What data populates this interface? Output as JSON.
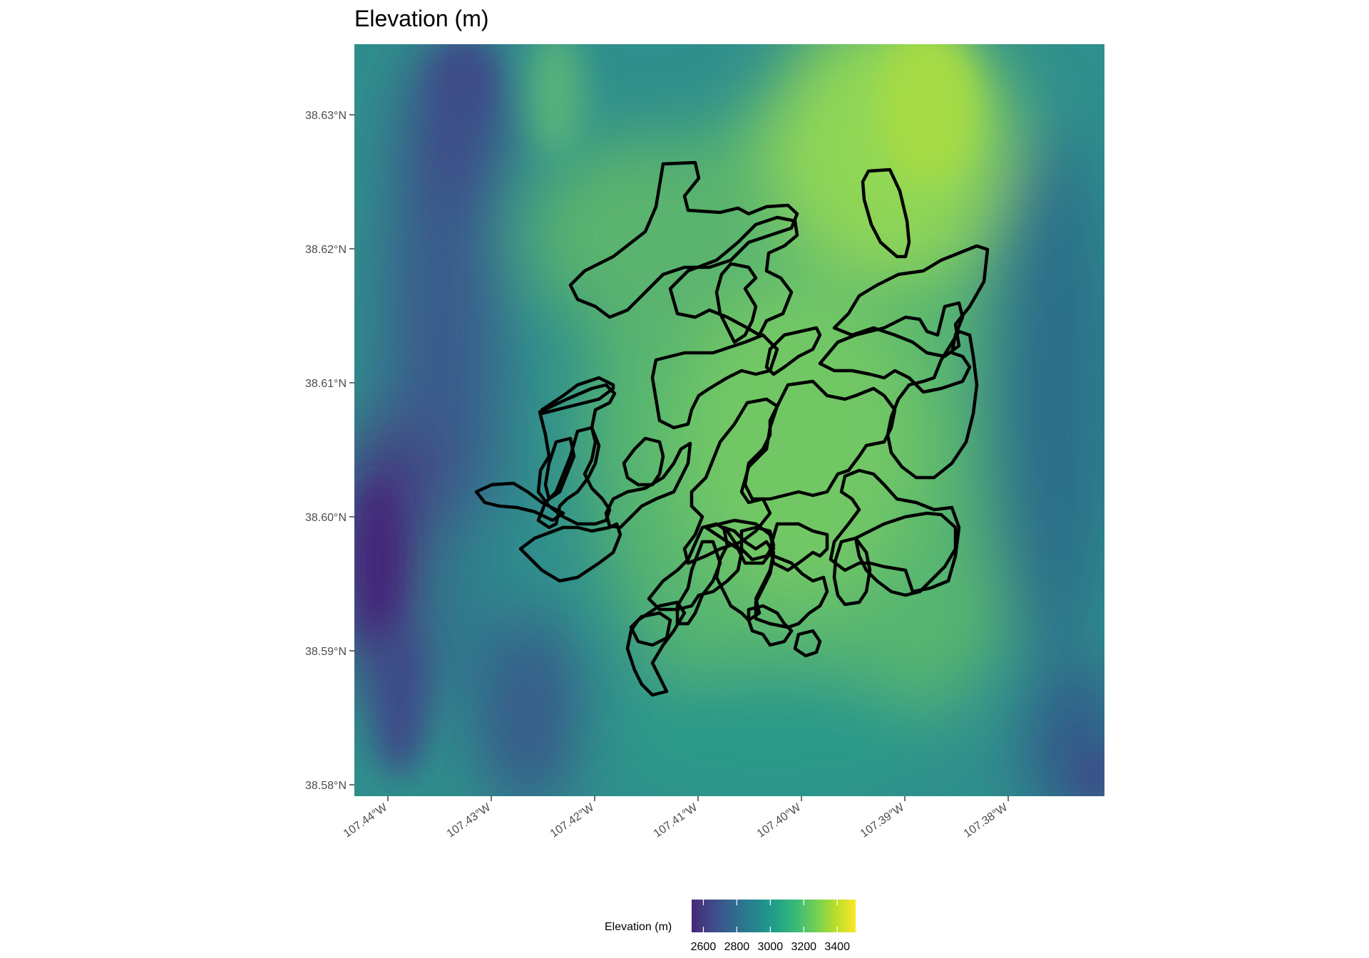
{
  "title": "Elevation (m)",
  "map": {
    "y_ticks": [
      "38.63°N",
      "38.62°N",
      "38.61°N",
      "38.60°N",
      "38.59°N",
      "38.58°N"
    ],
    "x_ticks": [
      "107.44°W",
      "107.43°W",
      "107.42°W",
      "107.41°W",
      "107.40°W",
      "107.39°W",
      "107.38°W"
    ],
    "boundary_color": "#000000",
    "palette": "viridis"
  },
  "legend": {
    "title": "Elevation (m)",
    "labels": [
      "2600",
      "2800",
      "3000",
      "3200",
      "3400"
    ],
    "colors": [
      "#482878",
      "#3e4a89",
      "#31688e",
      "#26828e",
      "#1f9e89",
      "#35b779",
      "#6ece58",
      "#b5de2b",
      "#fde725"
    ]
  }
}
